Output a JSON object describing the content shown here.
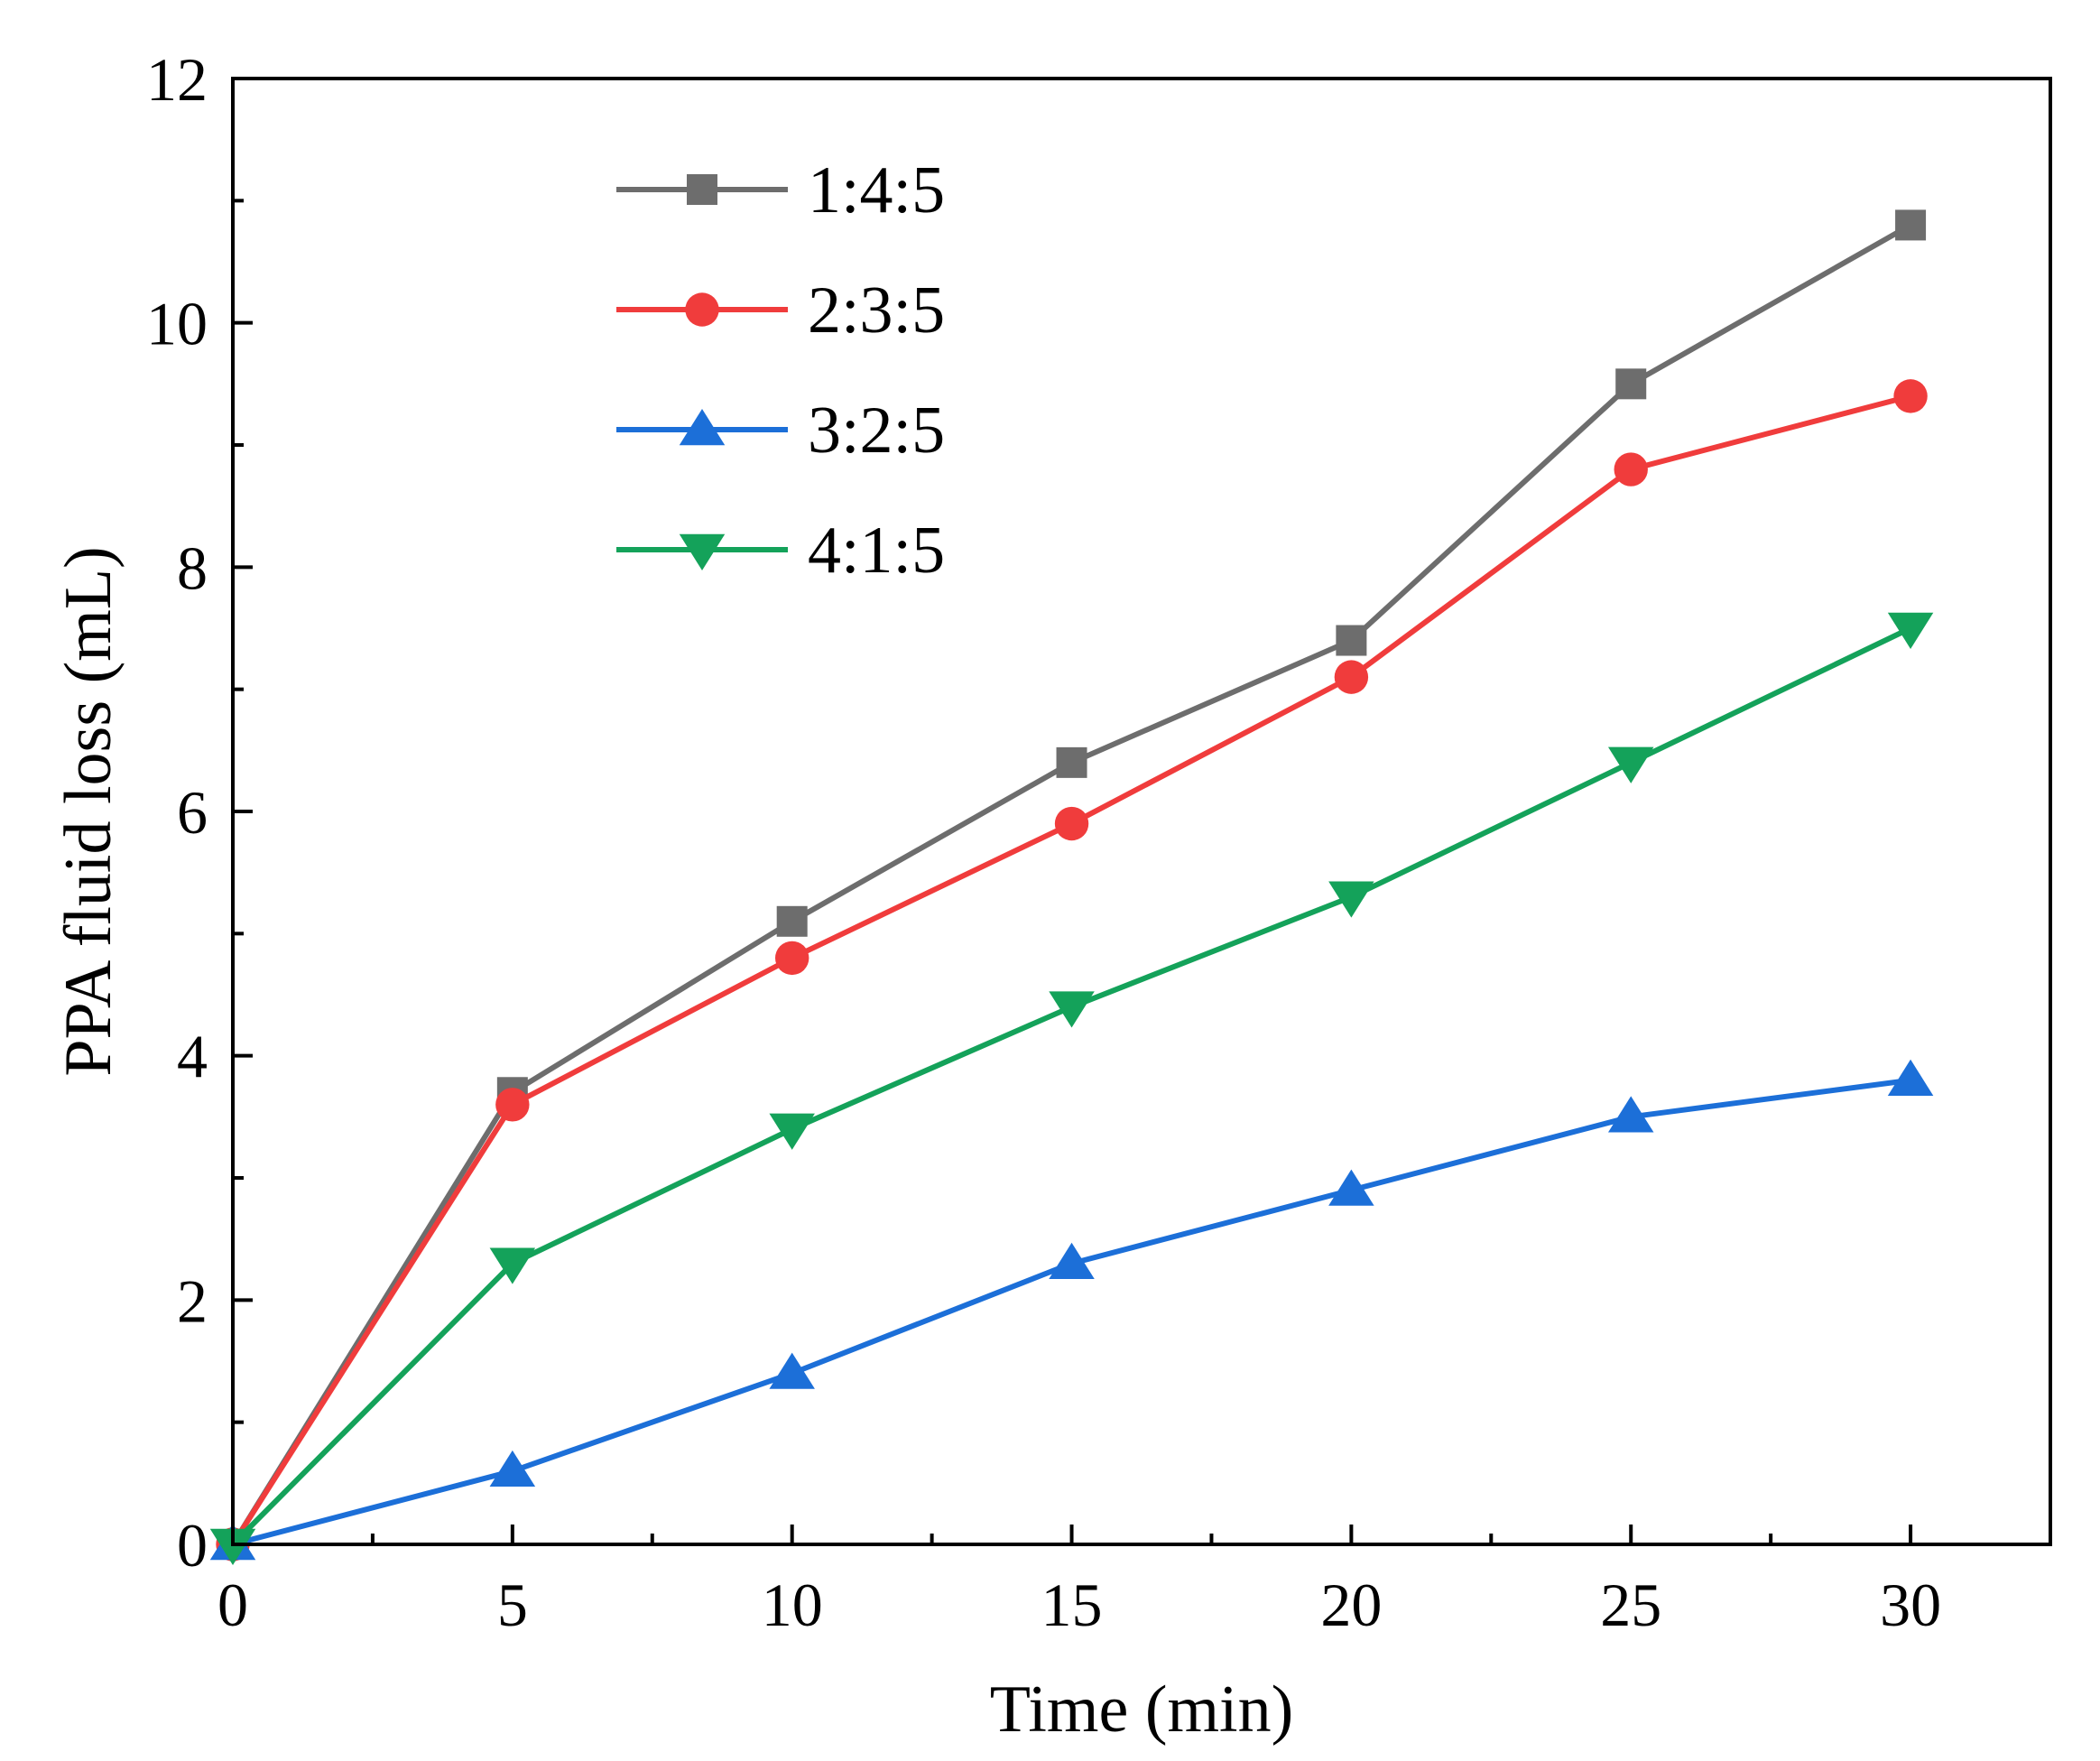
{
  "chart_data": {
    "type": "line",
    "title": "",
    "xlabel": "Time (min)",
    "ylabel": "PPA fluid loss (mL)",
    "xlim": [
      0,
      32.5
    ],
    "ylim": [
      0,
      12
    ],
    "xticks": [
      0,
      5,
      10,
      15,
      20,
      25,
      30
    ],
    "yticks": [
      0,
      2,
      4,
      6,
      8,
      10,
      12
    ],
    "x_minor_step": 2.5,
    "y_minor_step": 1,
    "grid": false,
    "legend_position": "top-left",
    "x": [
      0,
      5,
      10,
      15,
      20,
      25,
      30
    ],
    "series": [
      {
        "name": "1:4:5",
        "color": "#6d6d6d",
        "marker": "square",
        "values": [
          0,
          3.7,
          5.1,
          6.4,
          7.4,
          9.5,
          10.8
        ]
      },
      {
        "name": "2:3:5",
        "color": "#f03c3c",
        "marker": "circle",
        "values": [
          0,
          3.6,
          4.8,
          5.9,
          7.1,
          8.8,
          9.4
        ]
      },
      {
        "name": "3:2:5",
        "color": "#1c6fd8",
        "marker": "triangle-up",
        "values": [
          0,
          0.6,
          1.4,
          2.3,
          2.9,
          3.5,
          3.8
        ]
      },
      {
        "name": "4:1:5",
        "color": "#14a25a",
        "marker": "triangle-down",
        "values": [
          0,
          2.3,
          3.4,
          4.4,
          5.3,
          6.4,
          7.5
        ]
      }
    ]
  }
}
